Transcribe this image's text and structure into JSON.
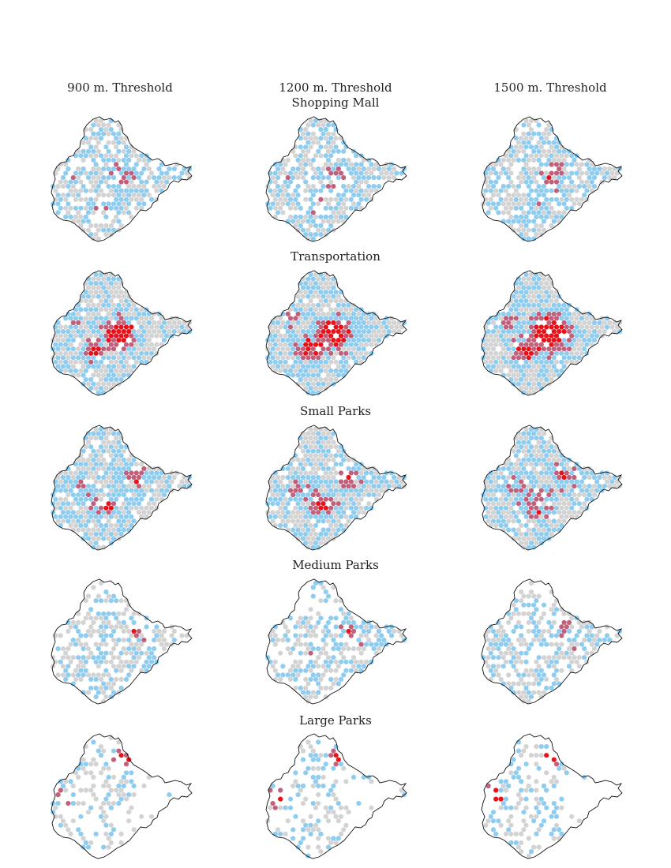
{
  "columns": [
    "900 m. Threshold",
    "1200 m. Threshold",
    "1500 m. Threshold"
  ],
  "rows": [
    {
      "label": "Shopping Mall"
    },
    {
      "label": "Transportation"
    },
    {
      "label": "Small Parks"
    },
    {
      "label": "Medium Parks"
    },
    {
      "label": "Large Parks"
    }
  ],
  "colors": {
    "none": "#d3d3d3",
    "low": "#8ecdf0",
    "mid": "#c0607a",
    "high": "#e8121a",
    "outline": "#111111"
  }
}
